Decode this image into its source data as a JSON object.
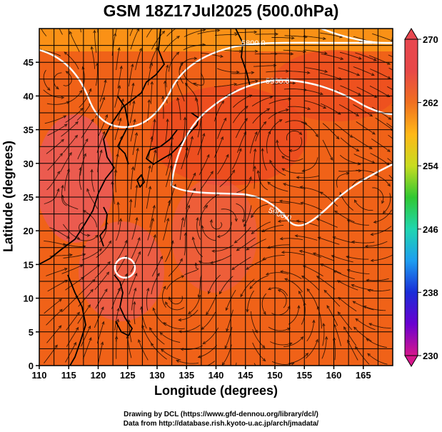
{
  "chart_data": {
    "type": "heatmap",
    "title": "GSM 18Z17Jul2025 (500.0hPa)",
    "xlabel": "Longitude (degrees)",
    "ylabel": "Latitude  (degrees)",
    "xlim": [
      110,
      170
    ],
    "ylim": [
      0,
      50
    ],
    "x_ticks": [
      110,
      115,
      120,
      125,
      130,
      135,
      140,
      145,
      150,
      155,
      160,
      165
    ],
    "y_ticks": [
      0,
      5,
      10,
      15,
      20,
      25,
      30,
      35,
      40,
      45
    ],
    "grid": true,
    "colorbar": {
      "ticks": [
        270,
        262,
        254,
        246,
        238,
        230
      ],
      "range": [
        230,
        270
      ],
      "colors": [
        "#d6168c",
        "#6a00d0",
        "#1a2cd8",
        "#1e9ef0",
        "#20d6b0",
        "#30c832",
        "#c8dc20",
        "#ffb818",
        "#f07020",
        "#e84848",
        "#e84850"
      ]
    },
    "contour_labels": [
      "5800.0",
      "5900.0",
      "5900.0"
    ],
    "field_colors": {
      "ocean": "#f06218",
      "warm_core": "#ec4a22",
      "northern_band": "#fb9a16",
      "land_pink": "#ea5a62"
    }
  },
  "credits": {
    "line1": "Drawing by DCL (https://www.gfd-dennou.org/library/dcl/)",
    "line2": "Data from http://database.rish.kyoto-u.ac.jp/arch/jmadata/"
  }
}
